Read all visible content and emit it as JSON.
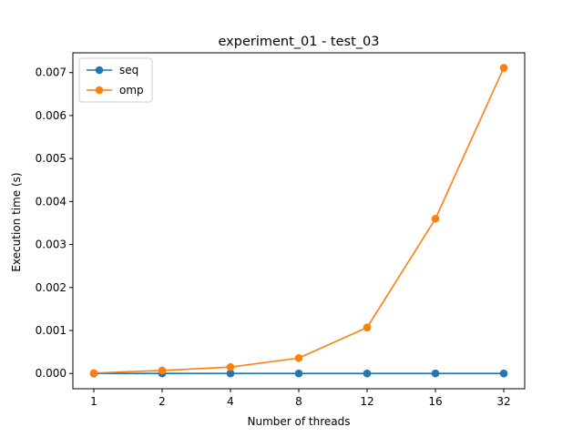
{
  "chart_data": {
    "type": "line",
    "title": "experiment_01 - test_03",
    "xlabel": "Number of threads",
    "ylabel": "Execution time (s)",
    "categories": [
      "1",
      "2",
      "4",
      "8",
      "12",
      "16",
      "32"
    ],
    "ylim": [
      -0.000355,
      0.00746
    ],
    "yticks": [
      "0.000",
      "0.001",
      "0.002",
      "0.003",
      "0.004",
      "0.005",
      "0.006",
      "0.007"
    ],
    "ytick_values": [
      0,
      0.001,
      0.002,
      0.003,
      0.004,
      0.005,
      0.006,
      0.007
    ],
    "grid": false,
    "legend_position": "top-left",
    "series": [
      {
        "name": "seq",
        "color": "#1f77b4",
        "marker": "circle",
        "values": [
          1e-06,
          1e-06,
          1e-06,
          1e-06,
          1e-06,
          1e-06,
          1e-06
        ]
      },
      {
        "name": "omp",
        "color": "#ff7f0e",
        "marker": "circle",
        "values": [
          1e-05,
          7e-05,
          0.00015,
          0.00036,
          0.00107,
          0.0036,
          0.00711
        ]
      }
    ]
  }
}
